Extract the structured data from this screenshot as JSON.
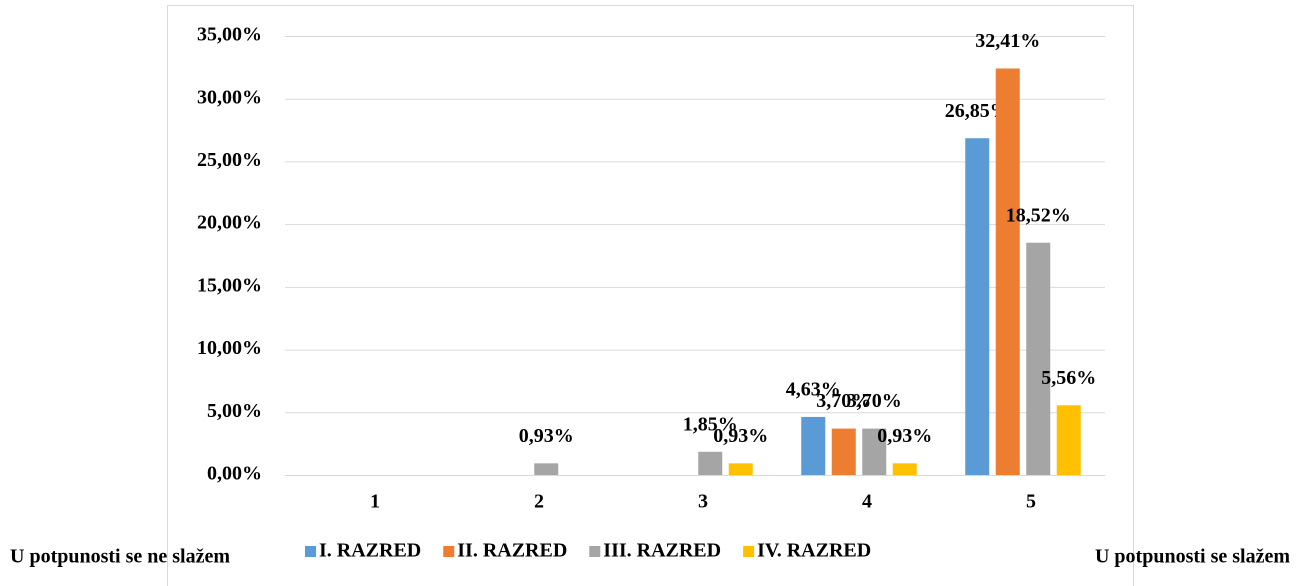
{
  "chart_data": {
    "type": "bar",
    "categories": [
      "1",
      "2",
      "3",
      "4",
      "5"
    ],
    "series": [
      {
        "name": "I. RAZRED",
        "color": "#5b9bd5",
        "values": [
          0,
          0,
          0,
          4.63,
          26.85
        ],
        "value_labels": [
          null,
          null,
          null,
          "4,63%",
          "26,85%"
        ]
      },
      {
        "name": "II. RAZRED",
        "color": "#ed7d31",
        "values": [
          0,
          0,
          0,
          3.7,
          32.41
        ],
        "value_labels": [
          null,
          null,
          null,
          "3,70%",
          "32,41%"
        ]
      },
      {
        "name": "III. RAZRED",
        "color": "#a5a5a5",
        "values": [
          0,
          0.93,
          1.85,
          3.7,
          18.52
        ],
        "value_labels": [
          null,
          "0,93%",
          "1,85%",
          "3,70%",
          "18,52%"
        ]
      },
      {
        "name": "IV. RAZRED",
        "color": "#ffc000",
        "values": [
          0,
          0,
          0.93,
          0.93,
          5.56
        ],
        "value_labels": [
          null,
          null,
          "0,93%",
          "0,93%",
          "5,56%"
        ]
      }
    ],
    "ylim": [
      0,
      35
    ],
    "yticks": [
      {
        "value": 0,
        "label": "0,00%"
      },
      {
        "value": 5,
        "label": "5,00%"
      },
      {
        "value": 10,
        "label": "10,00%"
      },
      {
        "value": 15,
        "label": "15,00%"
      },
      {
        "value": 20,
        "label": "20,00%"
      },
      {
        "value": 25,
        "label": "25,00%"
      },
      {
        "value": 30,
        "label": "30,00%"
      },
      {
        "value": 35,
        "label": "35,00%"
      }
    ],
    "grid": true,
    "legend": "bottom",
    "annotations": [
      "U potpunosti se ne slažem",
      "U potpunosti se slažem"
    ]
  }
}
